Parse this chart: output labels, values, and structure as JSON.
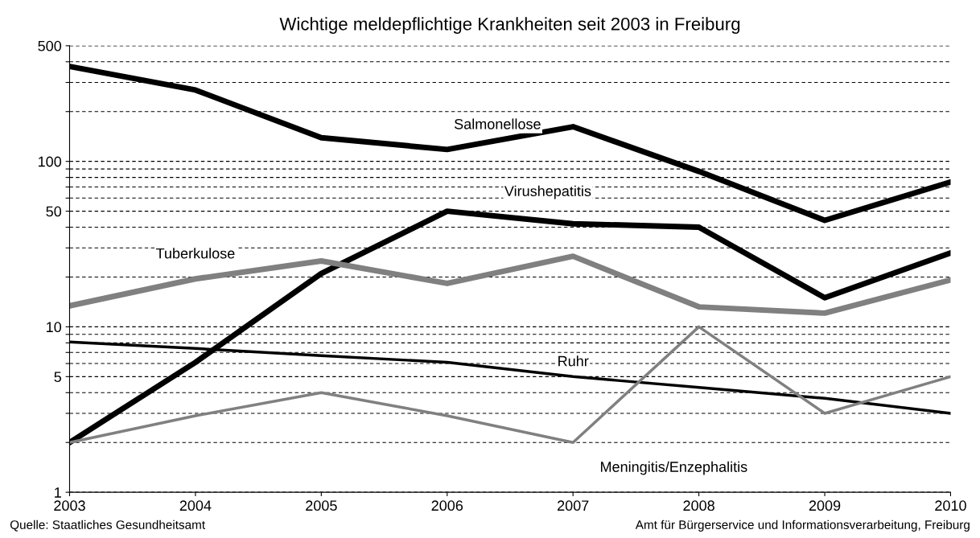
{
  "chart_data": {
    "type": "line",
    "title": "Wichtige meldepflichtige Krankheiten seit 2003 in Freiburg",
    "x": [
      2003,
      2004,
      2005,
      2006,
      2007,
      2008,
      2009,
      2010
    ],
    "xlim": [
      2003,
      2010
    ],
    "xticks": [
      2003,
      2004,
      2005,
      2006,
      2007,
      2008,
      2009,
      2010
    ],
    "log": "y",
    "ylim": [
      1,
      500
    ],
    "yticks": [
      1,
      {
        "value": 2,
        "label": null
      },
      {
        "value": 3,
        "label": null
      },
      {
        "value": 4,
        "label": null
      },
      5,
      {
        "value": 6,
        "label": null
      },
      {
        "value": 7,
        "label": null
      },
      {
        "value": 8,
        "label": null
      },
      {
        "value": 9,
        "label": null
      },
      10,
      {
        "value": 20,
        "label": null
      },
      {
        "value": 30,
        "label": null
      },
      {
        "value": 40,
        "label": null
      },
      50,
      {
        "value": 60,
        "label": null
      },
      {
        "value": 70,
        "label": null
      },
      {
        "value": 80,
        "label": null
      },
      {
        "value": 90,
        "label": null
      },
      100,
      {
        "value": 200,
        "label": null
      },
      {
        "value": 300,
        "label": null
      },
      {
        "value": 400,
        "label": null
      },
      500
    ],
    "grid": "y",
    "legend": false,
    "line_style": "solid",
    "marker": "none",
    "series": [
      {
        "name": "Salmonellose",
        "color": "#000000",
        "values": [
          375,
          270,
          139,
          118,
          162,
          87,
          44,
          75
        ]
      },
      {
        "name": "Virushepatitis",
        "color": "#000000",
        "values": [
          2,
          6.1,
          21,
          50,
          42,
          40,
          15,
          28
        ]
      },
      {
        "name": "Tuberkulose",
        "color": "#808080",
        "values": [
          13.4,
          19.5,
          25,
          18.3,
          26.7,
          13.2,
          12.1,
          19.2
        ]
      },
      {
        "name": "Ruhr",
        "color": "#000000",
        "values": [
          8.1,
          7.4,
          6.7,
          6.1,
          5,
          4.3,
          3.7,
          3
        ]
      },
      {
        "name": "Meningitis/Enzephalitis",
        "color": "#808080",
        "values": [
          2,
          2.9,
          4,
          2.9,
          2,
          10,
          3,
          5
        ]
      }
    ],
    "annotations": [
      "Quelle: Staatliches Gesundheitsamt",
      "Amt für Bürgerservice und Informationsverarbeitung, Freiburg"
    ]
  }
}
